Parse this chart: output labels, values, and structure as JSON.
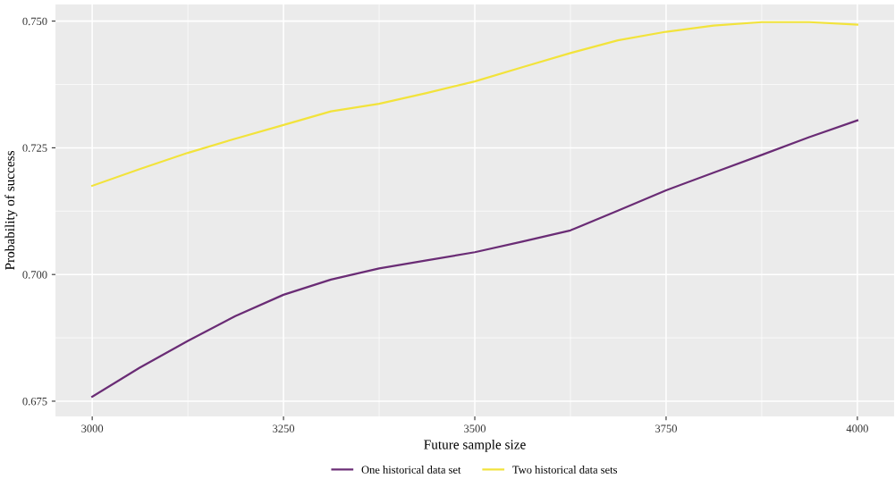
{
  "chart_data": {
    "type": "line",
    "xlabel": "Future sample size",
    "ylabel": "Probability of success",
    "x": [
      3000,
      3062,
      3125,
      3187,
      3250,
      3312,
      3375,
      3437,
      3500,
      3562,
      3625,
      3687,
      3750,
      3812,
      3875,
      3937,
      4000
    ],
    "series": [
      {
        "name": "One historical data set",
        "color": "#6a2c75",
        "values": [
          0.6759,
          0.6816,
          0.6869,
          0.6918,
          0.696,
          0.699,
          0.7012,
          0.7028,
          0.7044,
          0.7065,
          0.7087,
          0.7126,
          0.7166,
          0.7201,
          0.7236,
          0.7271,
          0.7304
        ]
      },
      {
        "name": "Two historical data sets",
        "color": "#f2e33b",
        "values": [
          0.7175,
          0.7208,
          0.724,
          0.7268,
          0.7295,
          0.7322,
          0.7337,
          0.7358,
          0.7381,
          0.7409,
          0.7437,
          0.7462,
          0.7479,
          0.7491,
          0.7498,
          0.7498,
          0.7493
        ]
      }
    ],
    "xlim": [
      2952,
      4048
    ],
    "ylim": [
      0.672,
      0.7533
    ],
    "xticks": [
      3000,
      3250,
      3500,
      3750,
      4000
    ],
    "yticks": [
      {
        "value": 0.675,
        "label": "0.675"
      },
      {
        "value": 0.7,
        "label": "0.700"
      },
      {
        "value": 0.725,
        "label": "0.725"
      },
      {
        "value": 0.75,
        "label": "0.750"
      }
    ],
    "grid": true,
    "legend": "bottom",
    "marker": "none",
    "line_style": "solid"
  }
}
